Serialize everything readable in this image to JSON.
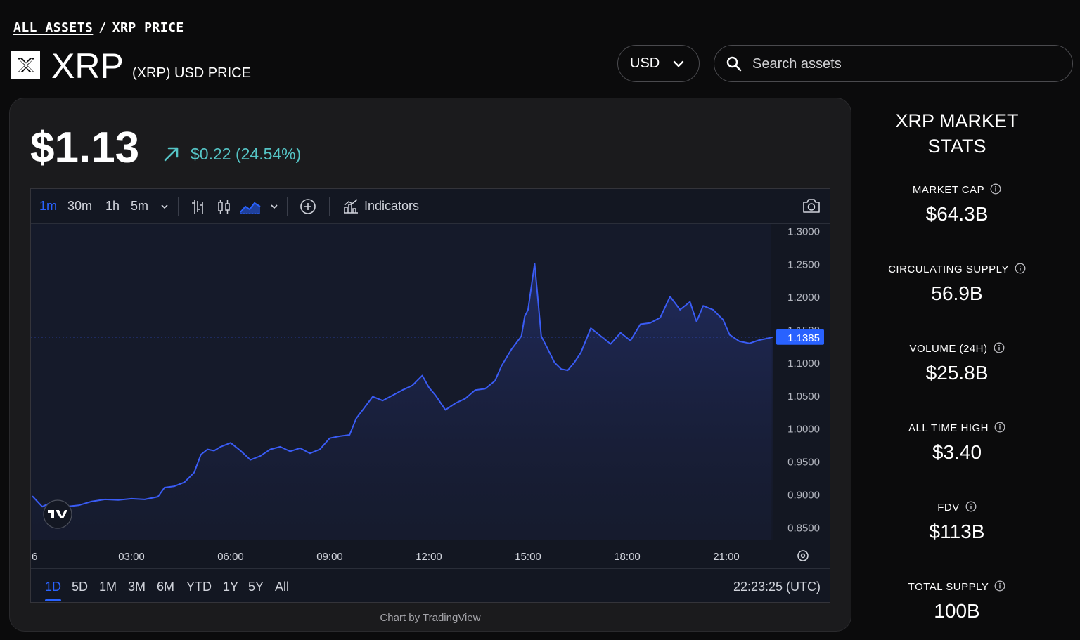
{
  "breadcrumb": {
    "root": "ALL ASSETS",
    "separator": "/",
    "current": "XRP PRICE"
  },
  "asset": {
    "name": "XRP",
    "subtitle": "(XRP) USD PRICE"
  },
  "currency": {
    "selected": "USD"
  },
  "search": {
    "placeholder": "Search assets"
  },
  "price": {
    "value": "$1.13",
    "change": "$0.22 (24.54%)",
    "direction": "up",
    "change_color": "#55c4c5"
  },
  "chart_toolbar": {
    "intervals": [
      "1m",
      "30m",
      "1h",
      "5m"
    ],
    "active_interval": "1m",
    "indicators_label": "Indicators"
  },
  "chart_ranges": {
    "items": [
      "1D",
      "5D",
      "1M",
      "3M",
      "6M",
      "YTD",
      "1Y",
      "5Y",
      "All"
    ],
    "active": "1D"
  },
  "chart_clock": "22:23:25 (UTC)",
  "chart_credit": "Chart by TradingView",
  "chart_data": {
    "type": "area",
    "line_color": "#3a5cf5",
    "current_price_label": "1.1385",
    "current_price": 1.1385,
    "ylim": [
      0.83,
      1.31
    ],
    "y_ticks": [
      "1.3000",
      "1.2500",
      "1.2000",
      "1.1500",
      "1.1000",
      "1.0500",
      "1.0000",
      "0.9500",
      "0.9000",
      "0.8500"
    ],
    "x_ticks": [
      "6",
      "03:00",
      "06:00",
      "09:00",
      "12:00",
      "15:00",
      "18:00",
      "21:00"
    ],
    "x_tick_hours": [
      0,
      3,
      6,
      9,
      12,
      15,
      18,
      21
    ],
    "xlim_hours": [
      0,
      22.4
    ],
    "series": [
      {
        "x_hours": [
          0,
          0.3,
          0.6,
          1.0,
          1.4,
          1.8,
          2.2,
          2.6,
          3.0,
          3.4,
          3.8,
          4.0,
          4.3,
          4.6,
          4.9,
          5.1,
          5.3,
          5.5,
          5.7,
          6.0,
          6.3,
          6.6,
          6.9,
          7.2,
          7.5,
          7.8,
          8.1,
          8.4,
          8.7,
          9.0,
          9.3,
          9.6,
          9.8,
          10.0,
          10.3,
          10.6,
          10.9,
          11.2,
          11.5,
          11.8,
          12.0,
          12.2,
          12.5,
          12.8,
          13.1,
          13.4,
          13.7,
          14.0,
          14.2,
          14.5,
          14.8,
          14.9,
          15.0,
          15.2,
          15.4,
          15.6,
          15.8,
          16.0,
          16.2,
          16.4,
          16.6,
          16.9,
          17.2,
          17.5,
          17.8,
          18.1,
          18.4,
          18.7,
          19.0,
          19.3,
          19.6,
          19.9,
          20.1,
          20.3,
          20.6,
          20.9,
          21.1,
          21.4,
          21.7,
          22.0,
          22.2,
          22.4
        ],
        "values": [
          0.897,
          0.881,
          0.888,
          0.881,
          0.883,
          0.889,
          0.892,
          0.891,
          0.893,
          0.892,
          0.896,
          0.91,
          0.912,
          0.918,
          0.933,
          0.96,
          0.968,
          0.966,
          0.972,
          0.978,
          0.966,
          0.952,
          0.958,
          0.968,
          0.972,
          0.965,
          0.97,
          0.962,
          0.968,
          0.985,
          0.988,
          0.99,
          1.015,
          1.028,
          1.048,
          1.042,
          1.05,
          1.058,
          1.065,
          1.08,
          1.062,
          1.05,
          1.028,
          1.038,
          1.045,
          1.058,
          1.06,
          1.072,
          1.095,
          1.12,
          1.14,
          1.17,
          1.18,
          1.25,
          1.14,
          1.12,
          1.1,
          1.09,
          1.088,
          1.1,
          1.115,
          1.152,
          1.14,
          1.128,
          1.145,
          1.133,
          1.158,
          1.16,
          1.168,
          1.2,
          1.18,
          1.192,
          1.162,
          1.186,
          1.18,
          1.165,
          1.142,
          1.132,
          1.129,
          1.134,
          1.136,
          1.1385
        ]
      }
    ]
  },
  "stats": {
    "title": "XRP MARKET STATS",
    "items": [
      {
        "label": "MARKET CAP",
        "value": "$64.3B"
      },
      {
        "label": "CIRCULATING SUPPLY",
        "value": "56.9B"
      },
      {
        "label": "VOLUME (24H)",
        "value": "$25.8B"
      },
      {
        "label": "ALL TIME HIGH",
        "value": "$3.40"
      },
      {
        "label": "FDV",
        "value": "$113B"
      },
      {
        "label": "TOTAL SUPPLY",
        "value": "100B"
      }
    ]
  }
}
